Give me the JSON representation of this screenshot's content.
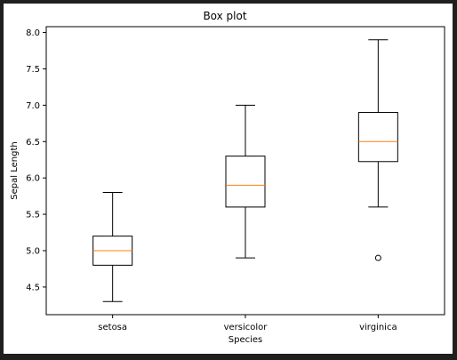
{
  "chart_data": {
    "type": "box",
    "title": "Box plot",
    "xlabel": "Species",
    "ylabel": "Sepal Length",
    "categories": [
      "setosa",
      "versicolor",
      "virginica"
    ],
    "boxes": [
      {
        "category": "setosa",
        "whisker_low": 4.3,
        "q1": 4.8,
        "median": 5.0,
        "q3": 5.2,
        "whisker_high": 5.8,
        "outliers": []
      },
      {
        "category": "versicolor",
        "whisker_low": 4.9,
        "q1": 5.6,
        "median": 5.9,
        "q3": 6.3,
        "whisker_high": 7.0,
        "outliers": []
      },
      {
        "category": "virginica",
        "whisker_low": 5.6,
        "q1": 6.225,
        "median": 6.5,
        "q3": 6.9,
        "whisker_high": 7.9,
        "outliers": [
          4.9
        ]
      }
    ],
    "yticks": [
      "4.5",
      "5.0",
      "5.5",
      "6.0",
      "6.5",
      "7.0",
      "7.5",
      "8.0"
    ],
    "ylim": [
      4.12,
      8.08
    ],
    "grid": false,
    "colors": {
      "box": "#000000",
      "median": "#ff7f0e",
      "outlier": "#000000"
    }
  }
}
